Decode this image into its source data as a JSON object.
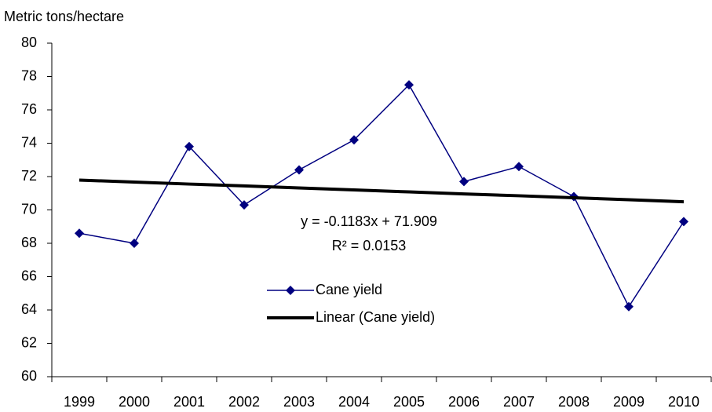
{
  "chart_data": {
    "type": "line",
    "y_label": "Metric tons/hectare",
    "categories": [
      "1999",
      "2000",
      "2001",
      "2002",
      "2003",
      "2004",
      "2005",
      "2006",
      "2007",
      "2008",
      "2009",
      "2010"
    ],
    "series": [
      {
        "name": "Cane yield",
        "color": "#000080",
        "marker": "diamond",
        "values": [
          68.6,
          68.0,
          73.8,
          70.3,
          72.4,
          74.2,
          77.5,
          71.7,
          72.6,
          70.8,
          64.2,
          69.3
        ]
      },
      {
        "name": "Linear (Cane yield)",
        "color": "#000000",
        "values": [
          71.79,
          71.67,
          71.55,
          71.44,
          71.32,
          71.2,
          71.08,
          70.96,
          70.85,
          70.73,
          70.61,
          70.49
        ]
      }
    ],
    "annotations": [
      "y = -0.1183x + 71.909",
      "R² = 0.0153"
    ],
    "ylim": [
      60,
      80
    ],
    "yticks": [
      60,
      62,
      64,
      66,
      68,
      70,
      72,
      74,
      76,
      78,
      80
    ],
    "grid": false
  }
}
